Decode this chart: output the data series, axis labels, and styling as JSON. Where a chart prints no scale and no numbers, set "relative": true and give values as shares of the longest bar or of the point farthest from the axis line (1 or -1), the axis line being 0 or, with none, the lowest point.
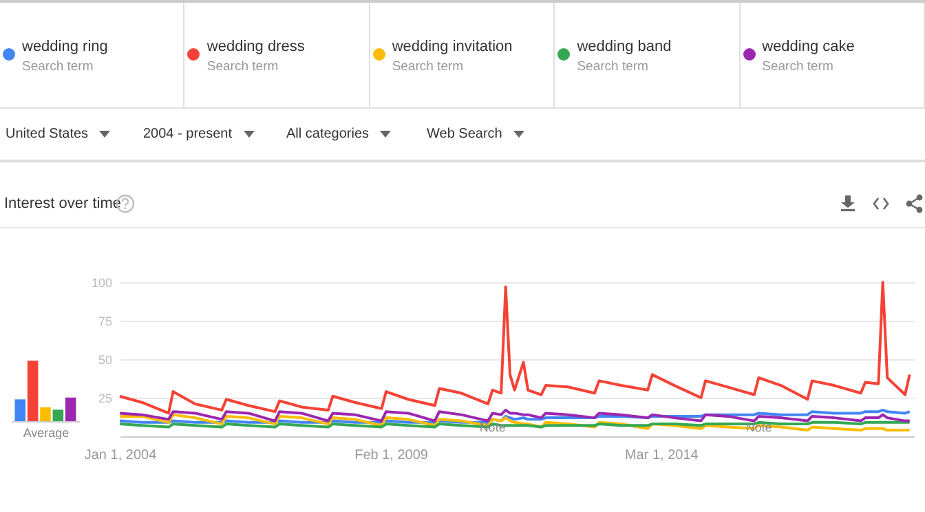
{
  "chart_data": [
    {
      "type": "bar",
      "relative": true,
      "xlabel": "Average",
      "categories": [
        null,
        null,
        null,
        null,
        null
      ],
      "values": [
        0.36,
        1,
        0.23,
        0.19,
        0.39
      ],
      "colors": [
        "#4285f4",
        "#f44336",
        "#fbbc05",
        "#34a853",
        "#9c27b0"
      ]
    },
    {
      "type": "line",
      "title": "Interest over time",
      "legend": "top",
      "grid": "y",
      "ylim": [
        0,
        100
      ],
      "yticks": [
        25,
        50,
        75,
        100
      ],
      "xlim": [
        "2004-01",
        "2018-12"
      ],
      "xticks": [
        {
          "value": "2004-01-01",
          "label": "Jan 1, 2004"
        },
        {
          "value": "2009-02-01",
          "label": "Feb 1, 2009"
        },
        {
          "value": "2014-03-01",
          "label": "Mar 1, 2014"
        }
      ],
      "annotations": [
        "Search term",
        "Search term",
        "Search term",
        "Search term",
        "Search term",
        "United States",
        "2004 - present",
        "All categories",
        "Web Search",
        {
          "text": "Note",
          "x": "2011-01",
          "y": 6
        },
        {
          "text": "Note",
          "x": "2016-01",
          "y": 6
        }
      ],
      "x": [
        "2004-01",
        "2004-06",
        "2004-12",
        "2005-01",
        "2005-06",
        "2005-12",
        "2006-01",
        "2006-06",
        "2006-12",
        "2007-01",
        "2007-06",
        "2007-12",
        "2008-01",
        "2008-06",
        "2008-12",
        "2009-01",
        "2009-06",
        "2009-12",
        "2010-01",
        "2010-06",
        "2010-12",
        "2011-01",
        "2011-03",
        "2011-04",
        "2011-05",
        "2011-06",
        "2011-08",
        "2011-09",
        "2011-12",
        "2012-01",
        "2012-06",
        "2012-12",
        "2013-01",
        "2013-06",
        "2013-12",
        "2014-01",
        "2014-06",
        "2014-12",
        "2015-01",
        "2015-06",
        "2015-12",
        "2016-01",
        "2016-06",
        "2016-12",
        "2017-01",
        "2017-06",
        "2017-12",
        "2018-01",
        "2018-04",
        "2018-05",
        "2018-06",
        "2018-10",
        "2018-11"
      ],
      "series": [
        {
          "name": "wedding ring",
          "color": "#4285f4",
          "values": [
            10,
            9,
            9,
            10,
            9,
            9,
            10,
            9,
            9,
            10,
            9,
            9,
            10,
            9,
            9,
            10,
            9,
            9,
            10,
            9,
            9,
            11,
            10,
            13,
            12,
            11,
            12,
            11,
            11,
            12,
            12,
            12,
            13,
            13,
            12,
            13,
            13,
            13,
            14,
            14,
            14,
            15,
            14,
            14,
            16,
            15,
            15,
            16,
            16,
            17,
            16,
            15,
            16
          ]
        },
        {
          "name": "wedding dress",
          "color": "#f44336",
          "values": [
            26,
            22,
            15,
            29,
            21,
            17,
            24,
            20,
            16,
            23,
            19,
            17,
            26,
            22,
            18,
            29,
            24,
            20,
            31,
            28,
            21,
            30,
            28,
            97,
            40,
            30,
            48,
            30,
            27,
            33,
            32,
            28,
            36,
            33,
            30,
            40,
            33,
            25,
            36,
            32,
            27,
            38,
            33,
            24,
            36,
            33,
            28,
            35,
            34,
            100,
            38,
            27,
            40
          ]
        },
        {
          "name": "wedding invitation",
          "color": "#fbbc05",
          "values": [
            13,
            13,
            9,
            14,
            12,
            8,
            13,
            12,
            8,
            13,
            12,
            8,
            12,
            11,
            7,
            12,
            11,
            7,
            11,
            10,
            7,
            11,
            10,
            12,
            10,
            9,
            8,
            8,
            6,
            9,
            8,
            6,
            9,
            8,
            5,
            8,
            7,
            5,
            7,
            6,
            5,
            7,
            6,
            4,
            6,
            5,
            4,
            5,
            5,
            5,
            4,
            4,
            4
          ]
        },
        {
          "name": "wedding band",
          "color": "#34a853",
          "values": [
            8,
            7,
            6,
            8,
            7,
            6,
            8,
            7,
            6,
            8,
            7,
            6,
            8,
            7,
            6,
            8,
            7,
            6,
            8,
            7,
            6,
            8,
            7,
            7,
            7,
            7,
            7,
            7,
            6,
            7,
            7,
            7,
            8,
            7,
            7,
            8,
            8,
            7,
            8,
            8,
            8,
            9,
            8,
            8,
            9,
            9,
            8,
            9,
            9,
            9,
            9,
            9,
            9
          ]
        },
        {
          "name": "wedding cake",
          "color": "#9c27b0",
          "values": [
            15,
            14,
            11,
            16,
            15,
            11,
            16,
            15,
            10,
            16,
            15,
            10,
            15,
            14,
            10,
            16,
            15,
            10,
            16,
            14,
            10,
            15,
            14,
            17,
            15,
            15,
            14,
            14,
            12,
            15,
            14,
            12,
            15,
            14,
            12,
            14,
            12,
            10,
            14,
            13,
            10,
            13,
            12,
            10,
            13,
            12,
            10,
            12,
            12,
            14,
            12,
            10,
            10
          ]
        }
      ]
    }
  ]
}
